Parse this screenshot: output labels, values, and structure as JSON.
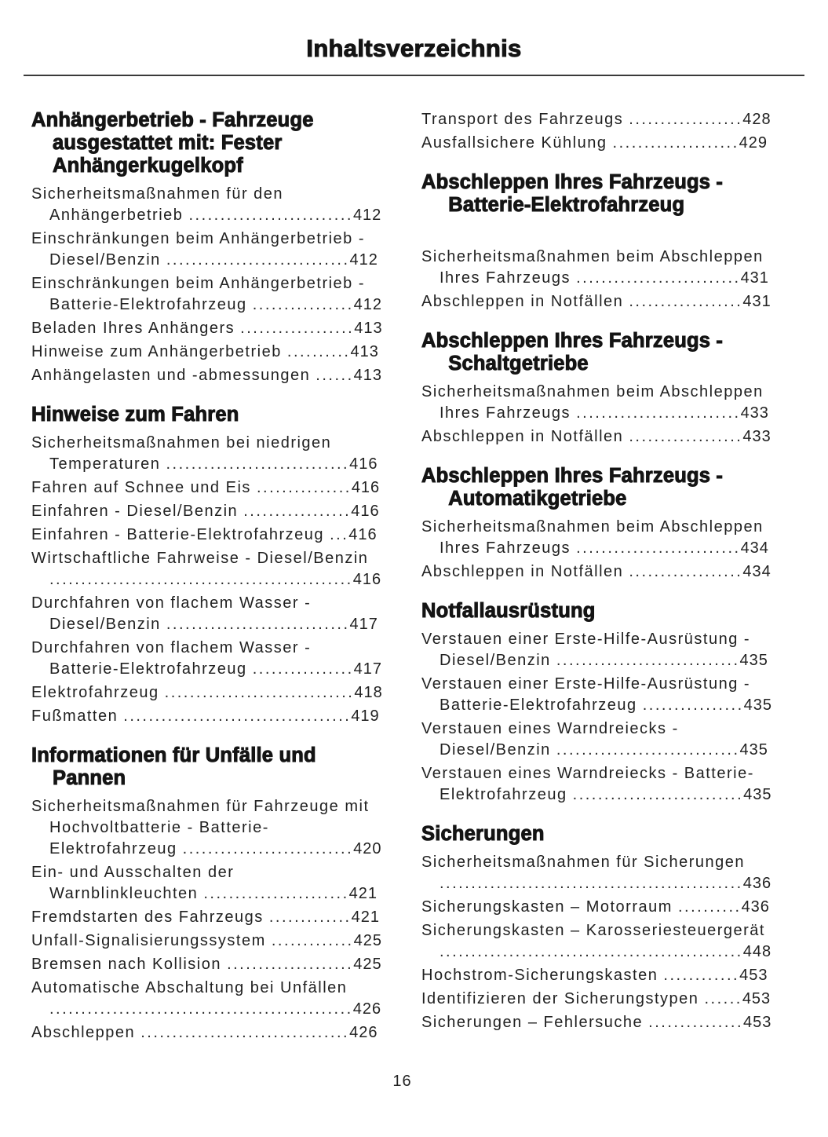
{
  "page": {
    "title": "Inhaltsverzeichnis",
    "page_number": "16"
  },
  "colors": {
    "text": "#212121",
    "heading": "#141414",
    "divider": "#3a3a3a",
    "background": "#ffffff"
  },
  "columns": [
    {
      "sections": [
        {
          "heading": "Anhängerbetrieb - Fahrzeuge ausgestattet mit: Fester Anhängerkugelkopf",
          "entries": [
            {
              "label": "Sicherheitsmaßnahmen für den Anhängerbetrieb",
              "page": "412"
            },
            {
              "label": "Einschränkungen beim Anhängerbetrieb - Diesel/Benzin",
              "page": "412"
            },
            {
              "label": "Einschränkungen beim Anhängerbetrieb - Batterie-Elektrofahrzeug",
              "page": "412"
            },
            {
              "label": "Beladen Ihres Anhängers",
              "page": "413"
            },
            {
              "label": "Hinweise zum Anhängerbetrieb",
              "page": "413"
            },
            {
              "label": "Anhängelasten und -abmessungen",
              "page": "413"
            }
          ]
        },
        {
          "heading": "Hinweise zum Fahren",
          "entries": [
            {
              "label": "Sicherheitsmaßnahmen bei niedrigen Temperaturen",
              "page": "416"
            },
            {
              "label": "Fahren auf Schnee und Eis",
              "page": "416"
            },
            {
              "label": "Einfahren - Diesel/Benzin",
              "page": "416"
            },
            {
              "label": "Einfahren - Batterie-Elektrofahrzeug",
              "page": "416"
            },
            {
              "label": "Wirtschaftliche Fahrweise - Diesel/Benzin",
              "page": "416"
            },
            {
              "label": "Durchfahren von flachem Wasser - Diesel/Benzin",
              "page": "417"
            },
            {
              "label": "Durchfahren von flachem Wasser - Batterie-Elektrofahrzeug",
              "page": "417"
            },
            {
              "label": "Elektrofahrzeug",
              "page": "418"
            },
            {
              "label": "Fußmatten",
              "page": "419"
            }
          ]
        },
        {
          "heading": "Informationen für Unfälle und Pannen",
          "entries": [
            {
              "label": "Sicherheitsmaßnahmen für Fahrzeuge mit Hochvoltbatterie - Batterie-Elektrofahrzeug",
              "page": "420"
            },
            {
              "label": "Ein- und Ausschalten der Warnblinkleuchten",
              "page": "421"
            },
            {
              "label": "Fremdstarten des Fahrzeugs",
              "page": "421"
            },
            {
              "label": "Unfall-Signalisierungssystem",
              "page": "425"
            },
            {
              "label": "Bremsen nach Kollision",
              "page": "425"
            },
            {
              "label": "Automatische Abschaltung bei Unfällen",
              "page": "426"
            },
            {
              "label": "Abschleppen",
              "page": "426"
            }
          ]
        }
      ]
    },
    {
      "sections": [
        {
          "heading": null,
          "entries": [
            {
              "label": "Transport des Fahrzeugs",
              "page": "428"
            },
            {
              "label": "Ausfallsichere Kühlung",
              "page": "429"
            }
          ]
        },
        {
          "heading": "Abschleppen Ihres Fahrzeugs - Batterie-Elektrofahrzeug",
          "extra_gap": true,
          "entries": [
            {
              "label": "Sicherheitsmaßnahmen beim Abschleppen Ihres Fahrzeugs",
              "page": "431"
            },
            {
              "label": "Abschleppen in Notfällen",
              "page": "431"
            }
          ]
        },
        {
          "heading": "Abschleppen Ihres Fahrzeugs - Schaltgetriebe",
          "entries": [
            {
              "label": "Sicherheitsmaßnahmen beim Abschleppen Ihres Fahrzeugs",
              "page": "433"
            },
            {
              "label": "Abschleppen in Notfällen",
              "page": "433"
            }
          ]
        },
        {
          "heading": "Abschleppen Ihres Fahrzeugs - Automatikgetriebe",
          "entries": [
            {
              "label": "Sicherheitsmaßnahmen beim Abschleppen Ihres Fahrzeugs",
              "page": "434"
            },
            {
              "label": "Abschleppen in Notfällen",
              "page": "434"
            }
          ]
        },
        {
          "heading": "Notfallausrüstung",
          "entries": [
            {
              "label": "Verstauen einer Erste-Hilfe-Ausrüstung - Diesel/Benzin",
              "page": "435"
            },
            {
              "label": "Verstauen einer Erste-Hilfe-Ausrüstung - Batterie-Elektrofahrzeug",
              "page": "435"
            },
            {
              "label": "Verstauen eines Warndreiecks - Diesel/Benzin",
              "page": "435"
            },
            {
              "label": "Verstauen eines Warndreiecks - Batterie-Elektrofahrzeug",
              "page": "435"
            }
          ]
        },
        {
          "heading": "Sicherungen",
          "entries": [
            {
              "label": "Sicherheitsmaßnahmen für Sicherungen",
              "page": "436"
            },
            {
              "label": "Sicherungskasten – Motorraum",
              "page": "436"
            },
            {
              "label": "Sicherungskasten – Karosseriesteuergerät",
              "page": "448"
            },
            {
              "label": "Hochstrom-Sicherungskasten",
              "page": "453"
            },
            {
              "label": "Identifizieren der Sicherungstypen",
              "page": "453"
            },
            {
              "label": "Sicherungen – Fehlersuche",
              "page": "453"
            }
          ]
        }
      ]
    }
  ]
}
